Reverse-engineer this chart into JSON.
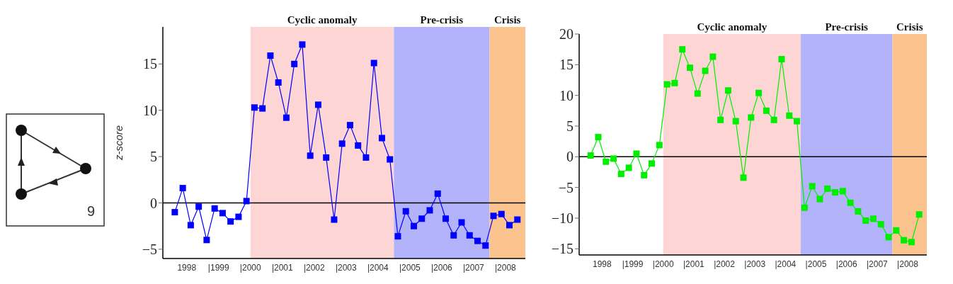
{
  "chart_data": [
    {
      "type": "other",
      "annotations": [
        "9"
      ]
    },
    {
      "type": "line",
      "ylabel": "z-score",
      "marker": "square",
      "line_style": "solid",
      "x": [
        1998.125,
        1998.375,
        1998.625,
        1998.875,
        1999.125,
        1999.375,
        1999.625,
        1999.875,
        2000.125,
        2000.375,
        2000.625,
        2000.875,
        2001.125,
        2001.375,
        2001.625,
        2001.875,
        2002.125,
        2002.375,
        2002.625,
        2002.875,
        2003.125,
        2003.375,
        2003.625,
        2003.875,
        2004.125,
        2004.375,
        2004.625,
        2004.875,
        2005.125,
        2005.375,
        2005.625,
        2005.875,
        2006.125,
        2006.375,
        2006.625,
        2006.875,
        2007.125,
        2007.375,
        2007.625,
        2007.875,
        2008.125,
        2008.375,
        2008.625,
        2008.875
      ],
      "series": [
        {
          "color": "#0000ff",
          "values": [
            -1,
            1.6,
            -2.4,
            -0.4,
            -4,
            -0.6,
            -1.1,
            -2,
            -1.5,
            0.2,
            10.3,
            10.2,
            15.9,
            13,
            9.2,
            15,
            17.1,
            5.1,
            10.6,
            4.9,
            -1.8,
            6.4,
            8.4,
            6.2,
            4.9,
            15.1,
            7,
            4.7,
            -3.6,
            -0.9,
            -2.5,
            -1.7,
            -0.8,
            1,
            -1.7,
            -3.5,
            -2.1,
            -3.5,
            -4.1,
            -4.6,
            -1.4,
            -1.2,
            -2.4,
            -1.8
          ]
        }
      ],
      "xlim": [
        1997.75,
        2009.125
      ],
      "ylim": [
        -6,
        19
      ],
      "yticks": [
        -5,
        0,
        5,
        10,
        15
      ],
      "xticks": [
        {
          "value": 1998.5,
          "label": "1998"
        },
        {
          "value": 1999.5,
          "label": "|1999"
        },
        {
          "value": 2000.5,
          "label": "|2000"
        },
        {
          "value": 2001.5,
          "label": "|2001"
        },
        {
          "value": 2002.5,
          "label": "|2002"
        },
        {
          "value": 2003.5,
          "label": "|2003"
        },
        {
          "value": 2004.5,
          "label": "|2004"
        },
        {
          "value": 2005.5,
          "label": "|2005"
        },
        {
          "value": 2006.5,
          "label": "|2006"
        },
        {
          "value": 2007.5,
          "label": "|2007"
        },
        {
          "value": 2008.5,
          "label": "|2008"
        }
      ],
      "bands": [
        {
          "axis": "x",
          "from": 2000.5,
          "to": 2005,
          "label": "Cyclic anomaly",
          "color": "#fdd5d5"
        },
        {
          "axis": "x",
          "from": 2005,
          "to": 2008,
          "label": "Pre-crisis",
          "color": "#b3b3fb"
        },
        {
          "axis": "x",
          "from": 2008,
          "to": 2009.125,
          "label": "Crisis",
          "color": "#fbc38d"
        }
      ],
      "ref_lines": [
        {
          "axis": "y",
          "value": 0,
          "color": "#000000"
        }
      ]
    },
    {
      "type": "line",
      "marker": "square",
      "line_style": "solid",
      "x": [
        1998.125,
        1998.375,
        1998.625,
        1998.875,
        1999.125,
        1999.375,
        1999.625,
        1999.875,
        2000.125,
        2000.375,
        2000.625,
        2000.875,
        2001.125,
        2001.375,
        2001.625,
        2001.875,
        2002.125,
        2002.375,
        2002.625,
        2002.875,
        2003.125,
        2003.375,
        2003.625,
        2003.875,
        2004.125,
        2004.375,
        2004.625,
        2004.875,
        2005.125,
        2005.375,
        2005.625,
        2005.875,
        2006.125,
        2006.375,
        2006.625,
        2006.875,
        2007.125,
        2007.375,
        2007.625,
        2007.875,
        2008.125,
        2008.375,
        2008.625,
        2008.875
      ],
      "series": [
        {
          "color": "#00ee00",
          "values": [
            0.2,
            3.2,
            -0.8,
            -0.3,
            -2.8,
            -1.8,
            0.5,
            -3,
            -1.1,
            1.9,
            11.8,
            12,
            17.5,
            14.5,
            10.3,
            14,
            16.3,
            6,
            10.8,
            5.8,
            -3.4,
            6.4,
            10.4,
            7.5,
            6,
            15.9,
            6.7,
            5.8,
            -8.3,
            -4.8,
            -6.9,
            -5.2,
            -5.8,
            -5.6,
            -7.5,
            -8.9,
            -10.4,
            -10.1,
            -11,
            -13.1,
            -12,
            -13.6,
            -13.9,
            -9.4
          ]
        }
      ],
      "xlim": [
        1997.75,
        2009.125
      ],
      "ylim": [
        -16,
        20
      ],
      "yticks": [
        -15,
        -10,
        -5,
        0,
        5,
        10,
        15,
        20
      ],
      "xticks": [
        {
          "value": 1998.5,
          "label": "1998"
        },
        {
          "value": 1999.5,
          "label": "|1999"
        },
        {
          "value": 2000.5,
          "label": "|2000"
        },
        {
          "value": 2001.5,
          "label": "|2001"
        },
        {
          "value": 2002.5,
          "label": "|2002"
        },
        {
          "value": 2003.5,
          "label": "|2003"
        },
        {
          "value": 2004.5,
          "label": "|2004"
        },
        {
          "value": 2005.5,
          "label": "|2005"
        },
        {
          "value": 2006.5,
          "label": "|2006"
        },
        {
          "value": 2007.5,
          "label": "|2007"
        },
        {
          "value": 2008.5,
          "label": "|2008"
        }
      ],
      "bands": [
        {
          "axis": "x",
          "from": 2000.5,
          "to": 2005,
          "label": "Cyclic anomaly",
          "color": "#fdd5d5"
        },
        {
          "axis": "x",
          "from": 2005,
          "to": 2008,
          "label": "Pre-crisis",
          "color": "#b3b3fb"
        },
        {
          "axis": "x",
          "from": 2008,
          "to": 2009.125,
          "label": "Crisis",
          "color": "#fbc38d"
        }
      ],
      "ref_lines": [
        {
          "axis": "y",
          "value": 0,
          "color": "#000000"
        }
      ]
    }
  ]
}
